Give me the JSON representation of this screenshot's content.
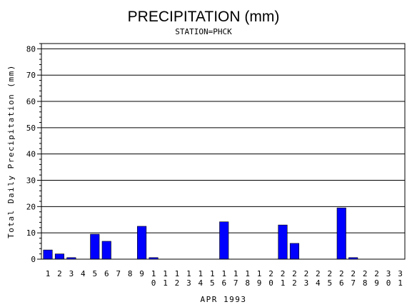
{
  "chart_data": {
    "type": "bar",
    "title": "PRECIPITATION (mm)",
    "subtitle": "STATION=PHCK",
    "xlabel": "APR 1993",
    "ylabel": "Total Daily Precipitation (mm)",
    "ylim": [
      0,
      82
    ],
    "yticks": [
      0,
      10,
      20,
      30,
      40,
      50,
      60,
      70,
      80
    ],
    "grid": true,
    "color": "#0000ff",
    "categories": [
      "1",
      "2",
      "3",
      "4",
      "5",
      "6",
      "7",
      "8",
      "9",
      "10",
      "11",
      "12",
      "13",
      "14",
      "15",
      "16",
      "17",
      "18",
      "19",
      "20",
      "21",
      "22",
      "23",
      "24",
      "25",
      "26",
      "27",
      "28",
      "29",
      "30",
      "31"
    ],
    "values": [
      3.5,
      2.0,
      0.6,
      0,
      9.5,
      6.8,
      0,
      0,
      12.5,
      0.6,
      0,
      0,
      0,
      0,
      0,
      14.2,
      0,
      0,
      0,
      0,
      13.0,
      6.0,
      0,
      0,
      0,
      19.5,
      0.6,
      0,
      0,
      0,
      0
    ]
  }
}
